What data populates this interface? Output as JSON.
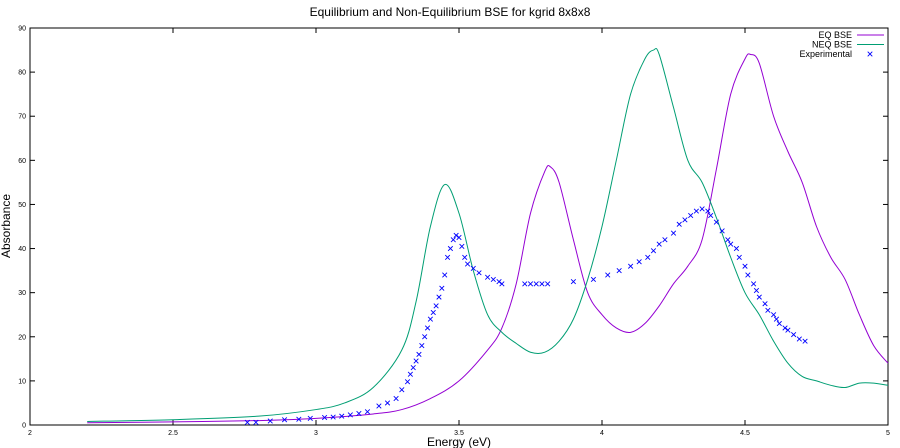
{
  "chart_data": {
    "type": "line",
    "title": "Equilibrium and Non-Equilibrium BSE for kgrid 8x8x8",
    "xlabel": "Energy (eV)",
    "ylabel": "Absorbance",
    "xlim": [
      2,
      5
    ],
    "ylim": [
      0,
      90
    ],
    "x_ticks": [
      "2",
      "2.5",
      "3",
      "3.5",
      "4",
      "4.5",
      "5"
    ],
    "y_ticks": [
      "0",
      "10",
      "20",
      "30",
      "40",
      "50",
      "60",
      "70",
      "80",
      "90"
    ],
    "grid": false,
    "legend_position": "top-right",
    "series": [
      {
        "name": "EQ BSE",
        "color": "#9400d3",
        "style": "line",
        "x": [
          2.2,
          2.5,
          2.8,
          3.0,
          3.2,
          3.3,
          3.4,
          3.5,
          3.6,
          3.65,
          3.7,
          3.75,
          3.8,
          3.82,
          3.85,
          3.9,
          3.95,
          4.0,
          4.05,
          4.1,
          4.15,
          4.2,
          4.25,
          4.3,
          4.35,
          4.4,
          4.45,
          4.5,
          4.52,
          4.55,
          4.6,
          4.65,
          4.7,
          4.75,
          4.8,
          4.85,
          4.9,
          4.95,
          5.0
        ],
        "y": [
          0.5,
          0.7,
          1.0,
          1.5,
          2.5,
          3.5,
          6.0,
          10.0,
          17.0,
          22.0,
          32.0,
          48.0,
          57.5,
          58.5,
          55.0,
          42.0,
          30.0,
          25.0,
          22.0,
          21.0,
          23.0,
          27.0,
          32.0,
          36.0,
          42.0,
          58.0,
          75.0,
          83.0,
          84.0,
          82.0,
          70.0,
          62.0,
          55.0,
          45.0,
          38.0,
          33.0,
          25.0,
          18.0,
          14.0
        ]
      },
      {
        "name": "NEQ BSE",
        "color": "#009e73",
        "style": "line",
        "x": [
          2.2,
          2.5,
          2.8,
          3.0,
          3.1,
          3.2,
          3.3,
          3.35,
          3.4,
          3.45,
          3.5,
          3.55,
          3.6,
          3.65,
          3.7,
          3.75,
          3.8,
          3.85,
          3.9,
          3.95,
          4.0,
          4.05,
          4.1,
          4.15,
          4.18,
          4.2,
          4.25,
          4.3,
          4.35,
          4.4,
          4.45,
          4.5,
          4.55,
          4.6,
          4.65,
          4.7,
          4.75,
          4.8,
          4.85,
          4.9,
          4.95,
          5.0
        ],
        "y": [
          0.8,
          1.2,
          2.0,
          3.5,
          5.0,
          8.5,
          17.0,
          28.0,
          45.0,
          54.5,
          48.0,
          35.0,
          25.0,
          21.0,
          18.5,
          16.5,
          16.5,
          19.0,
          24.0,
          33.0,
          45.0,
          60.0,
          75.0,
          83.0,
          85.0,
          84.0,
          72.0,
          60.0,
          55.0,
          47.0,
          38.0,
          30.0,
          25.0,
          19.0,
          14.0,
          11.0,
          10.0,
          9.0,
          8.5,
          9.5,
          9.5,
          9.0
        ]
      },
      {
        "name": "Experimental",
        "color": "#0000ff",
        "style": "markers",
        "x": [
          2.76,
          2.79,
          2.84,
          2.89,
          2.94,
          2.98,
          3.03,
          3.06,
          3.09,
          3.12,
          3.15,
          3.18,
          3.22,
          3.25,
          3.28,
          3.3,
          3.32,
          3.33,
          3.34,
          3.35,
          3.36,
          3.37,
          3.38,
          3.39,
          3.4,
          3.41,
          3.42,
          3.43,
          3.44,
          3.45,
          3.46,
          3.47,
          3.48,
          3.49,
          3.5,
          3.51,
          3.52,
          3.53,
          3.55,
          3.57,
          3.6,
          3.62,
          3.64,
          3.65,
          3.73,
          3.75,
          3.77,
          3.79,
          3.81,
          3.9,
          3.97,
          4.02,
          4.06,
          4.1,
          4.13,
          4.16,
          4.18,
          4.2,
          4.22,
          4.25,
          4.27,
          4.29,
          4.31,
          4.33,
          4.35,
          4.37,
          4.38,
          4.4,
          4.42,
          4.44,
          4.45,
          4.47,
          4.48,
          4.5,
          4.51,
          4.53,
          4.54,
          4.55,
          4.57,
          4.58,
          4.6,
          4.61,
          4.62,
          4.64,
          4.65,
          4.67,
          4.69,
          4.71
        ],
        "y": [
          0.6,
          0.6,
          0.9,
          1.2,
          1.3,
          1.5,
          1.7,
          1.8,
          2.0,
          2.3,
          2.6,
          3.0,
          4.3,
          5.0,
          6.0,
          8.0,
          9.8,
          11.5,
          13.0,
          14.5,
          16.0,
          18.0,
          20.0,
          22.0,
          24.0,
          25.5,
          27.0,
          29.0,
          31.0,
          34.0,
          38.0,
          40.0,
          42.0,
          43.0,
          42.5,
          40.5,
          38.0,
          36.5,
          35.5,
          34.5,
          33.5,
          33.0,
          32.5,
          32.0,
          32.0,
          32.0,
          32.0,
          32.0,
          32.0,
          32.5,
          33.0,
          34.0,
          35.0,
          36.0,
          37.0,
          38.0,
          39.5,
          41.0,
          42.0,
          43.5,
          45.5,
          46.5,
          47.5,
          48.5,
          49.0,
          48.5,
          47.5,
          46.0,
          44.0,
          42.0,
          41.0,
          40.0,
          38.0,
          36.0,
          34.0,
          32.0,
          30.5,
          29.0,
          27.5,
          26.0,
          25.0,
          24.0,
          23.0,
          22.0,
          21.5,
          20.5,
          19.5,
          19.0
        ]
      }
    ]
  }
}
